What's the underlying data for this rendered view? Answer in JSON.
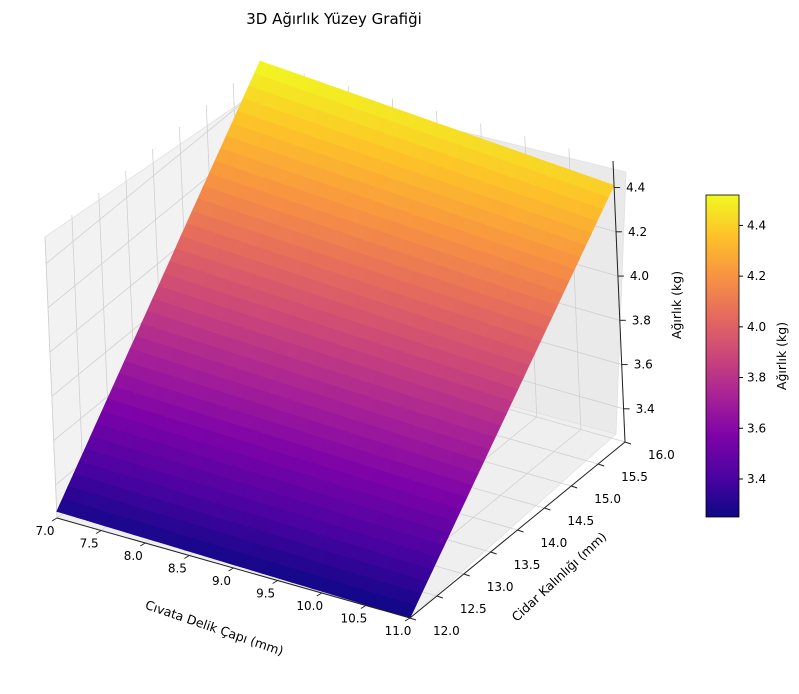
{
  "chart_data": {
    "type": "surface3d",
    "title": "3D Ağırlık Yüzey Grafiği",
    "xlabel": "Cıvata Delik Çapı (mm)",
    "ylabel": "Cidar Kalınlığı (mm)",
    "zlabel": "Ağırlık (kg)",
    "colorbar_label": "Ağırlık (kg)",
    "colormap": "plasma",
    "x_range": [
      7.0,
      11.0
    ],
    "y_range": [
      12.0,
      16.0
    ],
    "z_range": [
      3.25,
      4.52
    ],
    "x_ticks": [
      "7.0",
      "7.5",
      "8.0",
      "8.5",
      "9.0",
      "9.5",
      "10.0",
      "10.5",
      "11.0"
    ],
    "y_ticks": [
      "12.0",
      "12.5",
      "13.0",
      "13.5",
      "14.0",
      "14.5",
      "15.0",
      "15.5",
      "16.0"
    ],
    "z_ticks": [
      "3.4",
      "3.6",
      "3.8",
      "4.0",
      "4.2",
      "4.4"
    ],
    "colorbar_ticks": [
      "3.4",
      "3.6",
      "3.8",
      "4.0",
      "4.2",
      "4.4"
    ],
    "corner_values": [
      {
        "x": 7.0,
        "y": 12.0,
        "z": 3.28
      },
      {
        "x": 11.0,
        "y": 12.0,
        "z": 3.25
      },
      {
        "x": 7.0,
        "y": 16.0,
        "z": 4.52
      },
      {
        "x": 11.0,
        "y": 16.0,
        "z": 4.41
      }
    ],
    "grid": true
  }
}
